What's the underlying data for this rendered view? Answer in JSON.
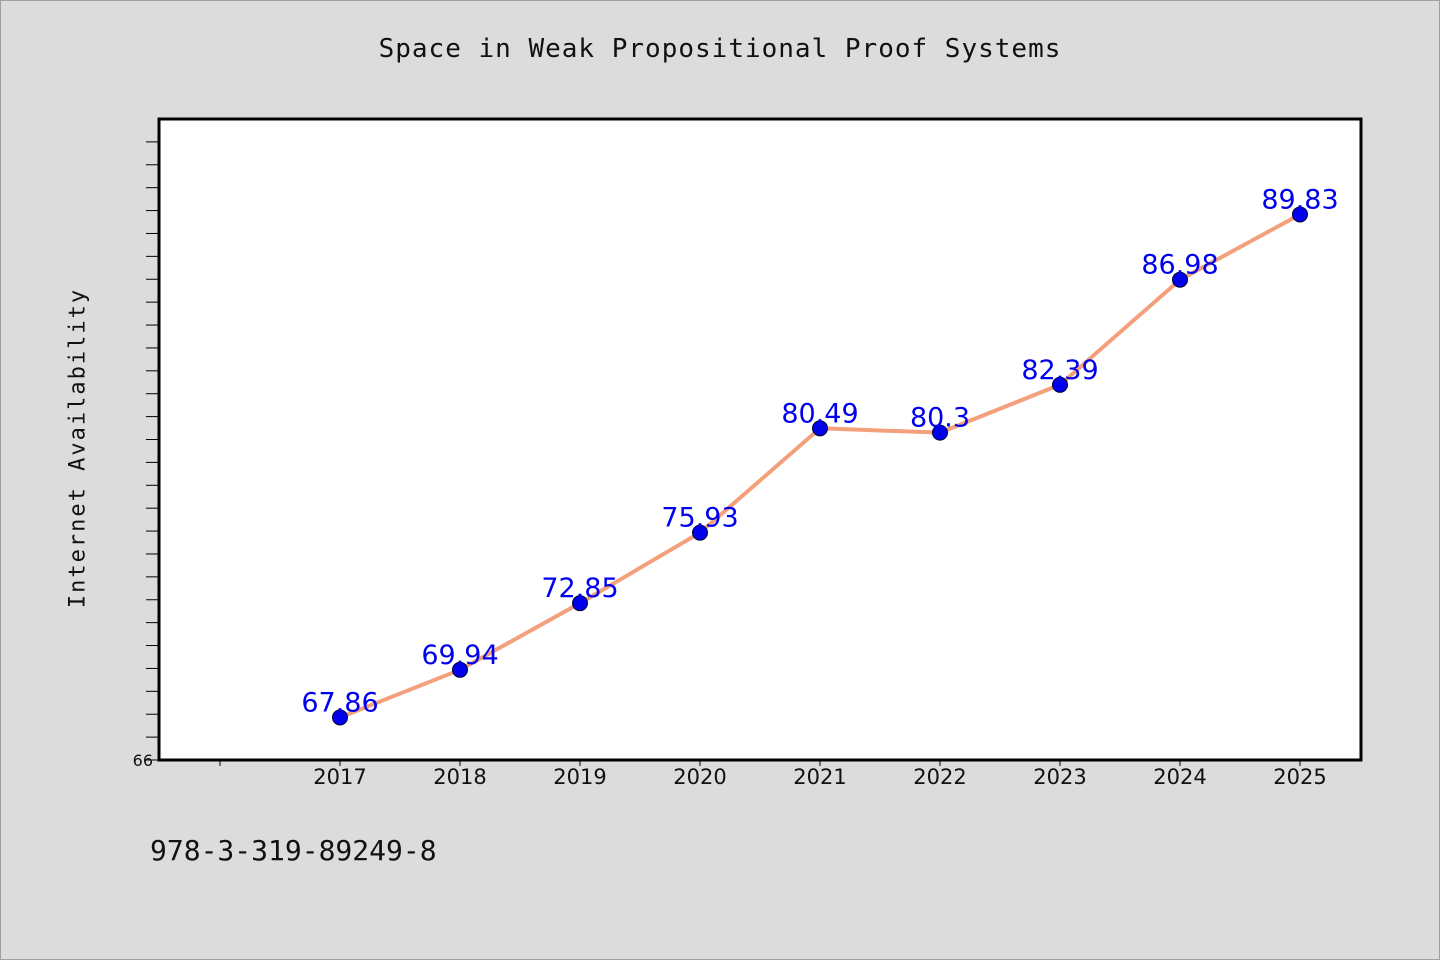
{
  "chart_data": {
    "type": "line",
    "title": "Space in Weak Propositional Proof Systems",
    "xlabel": "",
    "ylabel": "Internet Availability",
    "categories": [
      "2017",
      "2018",
      "2019",
      "2020",
      "2021",
      "2022",
      "2023",
      "2024",
      "2025"
    ],
    "series": [
      {
        "values": [
          67.86,
          69.94,
          72.85,
          75.93,
          80.49,
          80.3,
          82.39,
          86.98,
          89.83
        ],
        "labels": [
          "67.86",
          "69.94",
          "72.85",
          "75.93",
          "80.49",
          "80.3",
          "82.39",
          "86.98",
          "89.83"
        ]
      }
    ],
    "ylim": [
      66,
      94
    ],
    "ytick_labels": [
      "66"
    ],
    "grid": false,
    "legend": "none",
    "colors": {
      "line": "#f4a07c",
      "marker": "#0000ee",
      "data_label": "#0000ee",
      "background": "#dcdcdc",
      "plot_area": "#ffffff"
    }
  },
  "footnote": "978-3-319-89249-8"
}
